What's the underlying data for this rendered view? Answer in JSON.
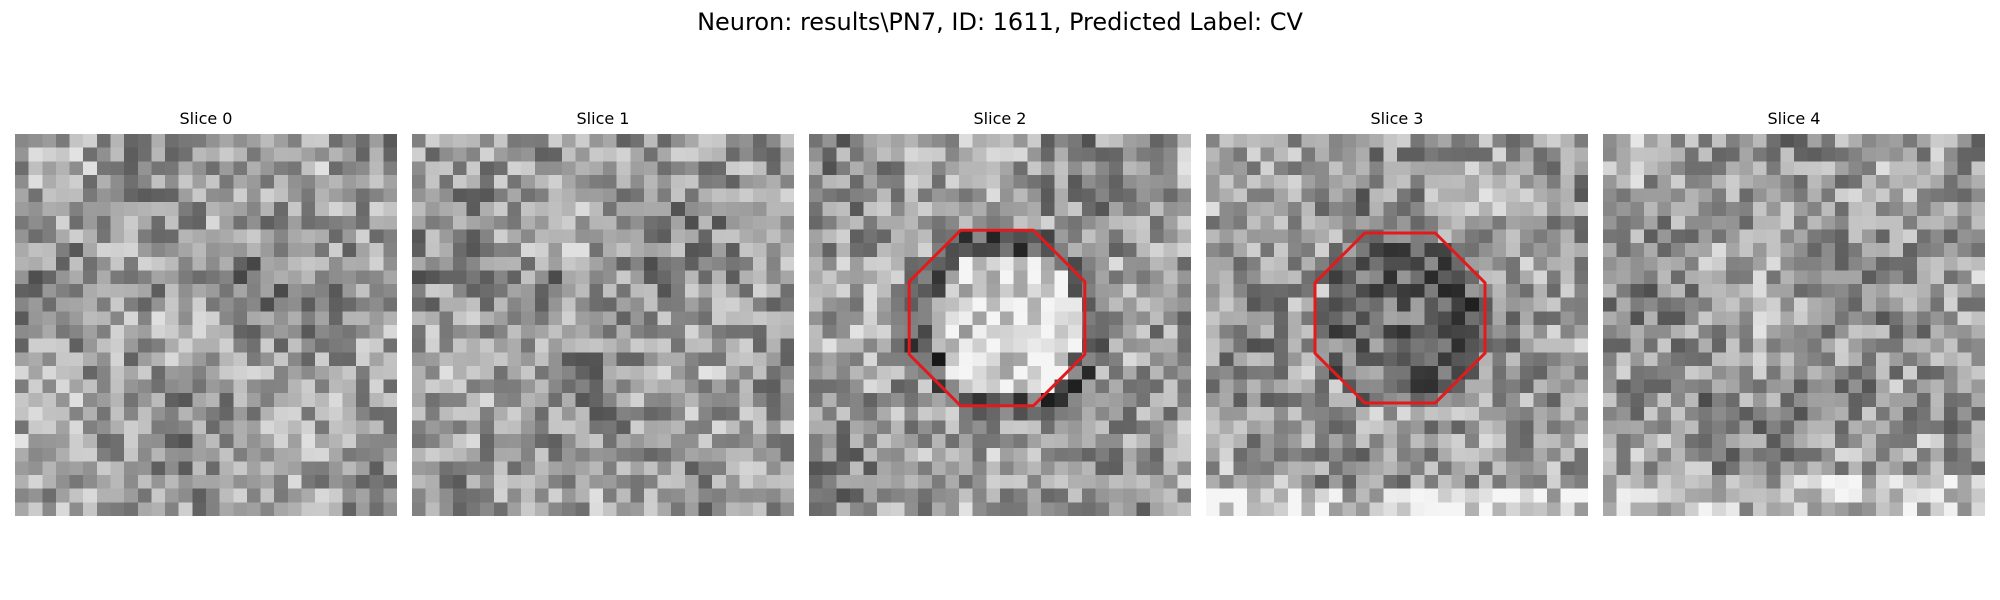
{
  "figure": {
    "title": "Neuron: results\\PN7, ID: 1611, Predicted Label: CV"
  },
  "colors": {
    "outline": "#e31a1c",
    "background": "#ffffff"
  },
  "image": {
    "grid": 28,
    "colormap": "gray"
  },
  "panels": [
    {
      "title": "Slice 0",
      "seed": 11,
      "outline": false,
      "center_tone": "none"
    },
    {
      "title": "Slice 1",
      "seed": 29,
      "outline": false,
      "center_tone": "none"
    },
    {
      "title": "Slice 2",
      "seed": 47,
      "outline": true,
      "center_tone": "bright"
    },
    {
      "title": "Slice 3",
      "seed": 83,
      "outline": true,
      "center_tone": "dark"
    },
    {
      "title": "Slice 4",
      "seed": 101,
      "outline": false,
      "center_tone": "none"
    }
  ]
}
